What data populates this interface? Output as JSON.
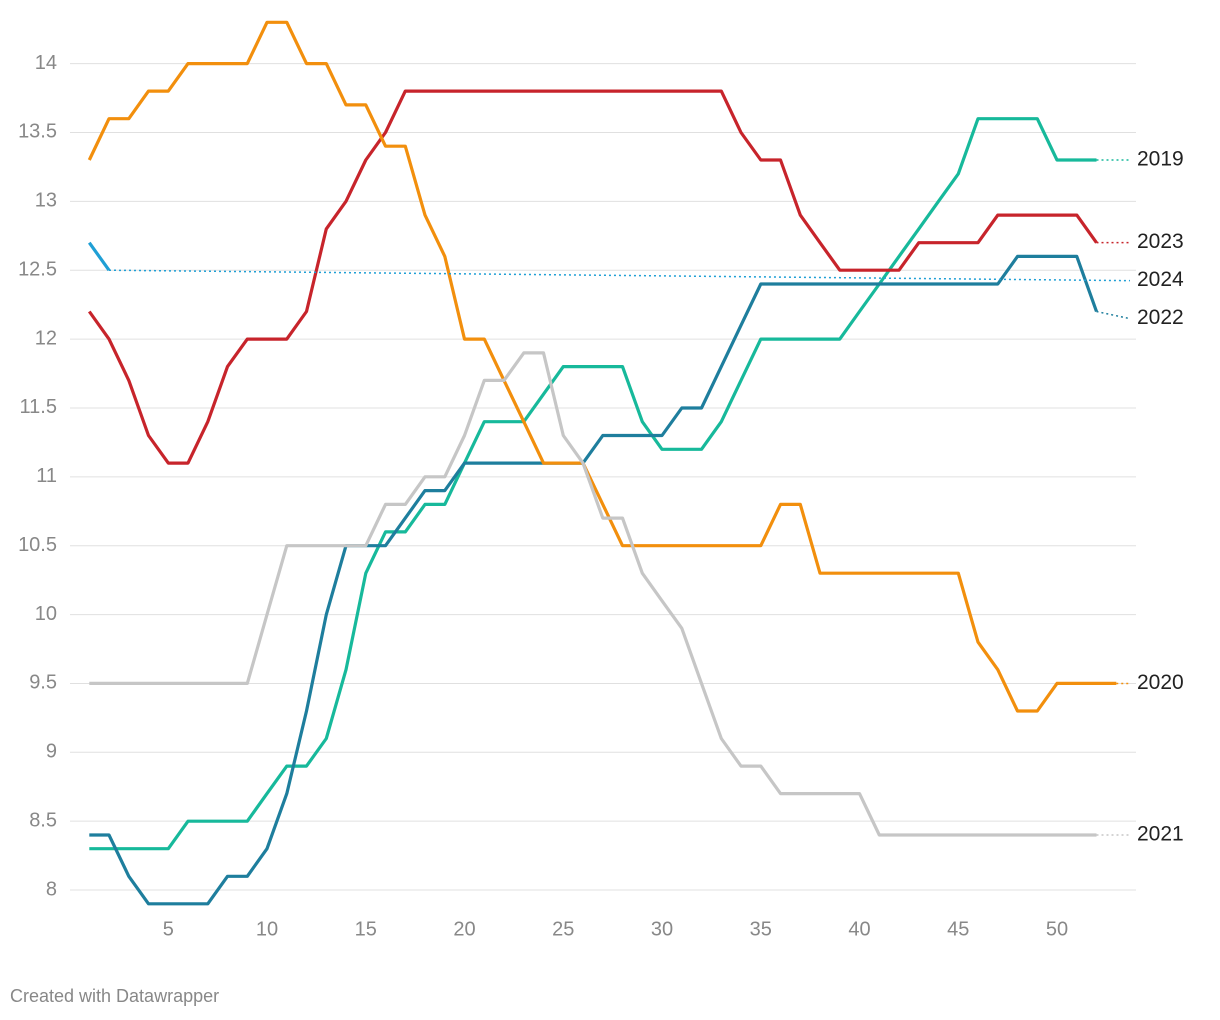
{
  "chart_data": {
    "type": "line",
    "x": [
      1,
      2,
      3,
      4,
      5,
      6,
      7,
      8,
      9,
      10,
      11,
      12,
      13,
      14,
      15,
      16,
      17,
      18,
      19,
      20,
      21,
      22,
      23,
      24,
      25,
      26,
      27,
      28,
      29,
      30,
      31,
      32,
      33,
      34,
      35,
      36,
      37,
      38,
      39,
      40,
      41,
      42,
      43,
      44,
      45,
      46,
      47,
      48,
      49,
      50,
      51,
      52,
      53
    ],
    "series": [
      {
        "name": "2019",
        "color": "#17b99b",
        "values": [
          8.3,
          8.3,
          8.3,
          8.3,
          8.3,
          8.5,
          8.5,
          8.5,
          8.5,
          8.7,
          8.9,
          8.9,
          9.1,
          9.6,
          10.3,
          10.6,
          10.6,
          10.8,
          10.8,
          11.1,
          11.4,
          11.4,
          11.4,
          11.6,
          11.8,
          11.8,
          11.8,
          11.8,
          11.4,
          11.2,
          11.2,
          11.2,
          11.4,
          11.7,
          12,
          12,
          12,
          12,
          12,
          12.2,
          12.4,
          12.6,
          12.8,
          13,
          13.2,
          13.6,
          13.6,
          13.6,
          13.6,
          13.3,
          13.3,
          13.3,
          null
        ]
      },
      {
        "name": "2023",
        "color": "#c7242b",
        "values": [
          12.2,
          12,
          11.7,
          11.3,
          11.1,
          11.1,
          11.4,
          11.8,
          12,
          12,
          12,
          12.2,
          12.8,
          13,
          13.3,
          13.5,
          13.8,
          13.8,
          13.8,
          13.8,
          13.8,
          13.8,
          13.8,
          13.8,
          13.8,
          13.8,
          13.8,
          13.8,
          13.8,
          13.8,
          13.8,
          13.8,
          13.8,
          13.5,
          13.3,
          13.3,
          12.9,
          12.7,
          12.5,
          12.5,
          12.5,
          12.5,
          12.7,
          12.7,
          12.7,
          12.7,
          12.9,
          12.9,
          12.9,
          12.9,
          12.9,
          12.7,
          null
        ]
      },
      {
        "name": "2024",
        "color": "#1f9fd5",
        "values": [
          12.7,
          12.5,
          null,
          null,
          null,
          null,
          null,
          null,
          null,
          null,
          null,
          null,
          null,
          null,
          null,
          null,
          null,
          null,
          null,
          null,
          null,
          null,
          null,
          null,
          null,
          null,
          null,
          null,
          null,
          null,
          null,
          null,
          null,
          null,
          null,
          null,
          null,
          null,
          null,
          null,
          null,
          null,
          null,
          null,
          null,
          null,
          null,
          null,
          null,
          null,
          null,
          null,
          null
        ]
      },
      {
        "name": "2022",
        "color": "#1e7e9d",
        "values": [
          8.4,
          8.4,
          8.1,
          7.9,
          7.9,
          7.9,
          7.9,
          8.1,
          8.1,
          8.3,
          8.7,
          9.3,
          10,
          10.5,
          10.5,
          10.5,
          10.7,
          10.9,
          10.9,
          11.1,
          11.1,
          11.1,
          11.1,
          11.1,
          11.1,
          11.1,
          11.3,
          11.3,
          11.3,
          11.3,
          11.5,
          11.5,
          11.8,
          12.1,
          12.4,
          12.4,
          12.4,
          12.4,
          12.4,
          12.4,
          12.4,
          12.4,
          12.4,
          12.4,
          12.4,
          12.4,
          12.4,
          12.6,
          12.6,
          12.6,
          12.6,
          12.2,
          null
        ]
      },
      {
        "name": "2020",
        "color": "#f28f0d",
        "values": [
          13.3,
          13.6,
          13.6,
          13.8,
          13.8,
          14,
          14,
          14,
          14,
          14.3,
          14.3,
          14,
          14,
          13.7,
          13.7,
          13.4,
          13.4,
          12.9,
          12.6,
          12,
          12,
          11.7,
          11.4,
          11.1,
          11.1,
          11.1,
          10.8,
          10.5,
          10.5,
          10.5,
          10.5,
          10.5,
          10.5,
          10.5,
          10.5,
          10.8,
          10.8,
          10.3,
          10.3,
          10.3,
          10.3,
          10.3,
          10.3,
          10.3,
          10.3,
          9.8,
          9.6,
          9.3,
          9.3,
          9.5,
          9.5,
          9.5,
          9.5
        ]
      },
      {
        "name": "2021",
        "color": "#c6c6c6",
        "values": [
          9.5,
          9.5,
          9.5,
          9.5,
          9.5,
          9.5,
          9.5,
          9.5,
          9.5,
          10,
          10.5,
          10.5,
          10.5,
          10.5,
          10.5,
          10.8,
          10.8,
          11,
          11,
          11.3,
          11.7,
          11.7,
          11.9,
          11.9,
          11.3,
          11.1,
          10.7,
          10.7,
          10.3,
          10.1,
          9.9,
          9.5,
          9.1,
          8.9,
          8.9,
          8.7,
          8.7,
          8.7,
          8.7,
          8.7,
          8.4,
          8.4,
          8.4,
          8.4,
          8.4,
          8.4,
          8.4,
          8.4,
          8.4,
          8.4,
          8.4,
          8.4,
          null
        ]
      }
    ],
    "xlim": [
      0,
      54
    ],
    "ylim": [
      7.8,
      14.4
    ],
    "xticks": [
      5,
      10,
      15,
      20,
      25,
      30,
      35,
      40,
      45,
      50
    ],
    "yticks": [
      8,
      8.5,
      9,
      9.5,
      10,
      10.5,
      11,
      11.5,
      12,
      12.5,
      13,
      13.5,
      14
    ],
    "grid": true
  },
  "footer": "Created with Datawrapper"
}
